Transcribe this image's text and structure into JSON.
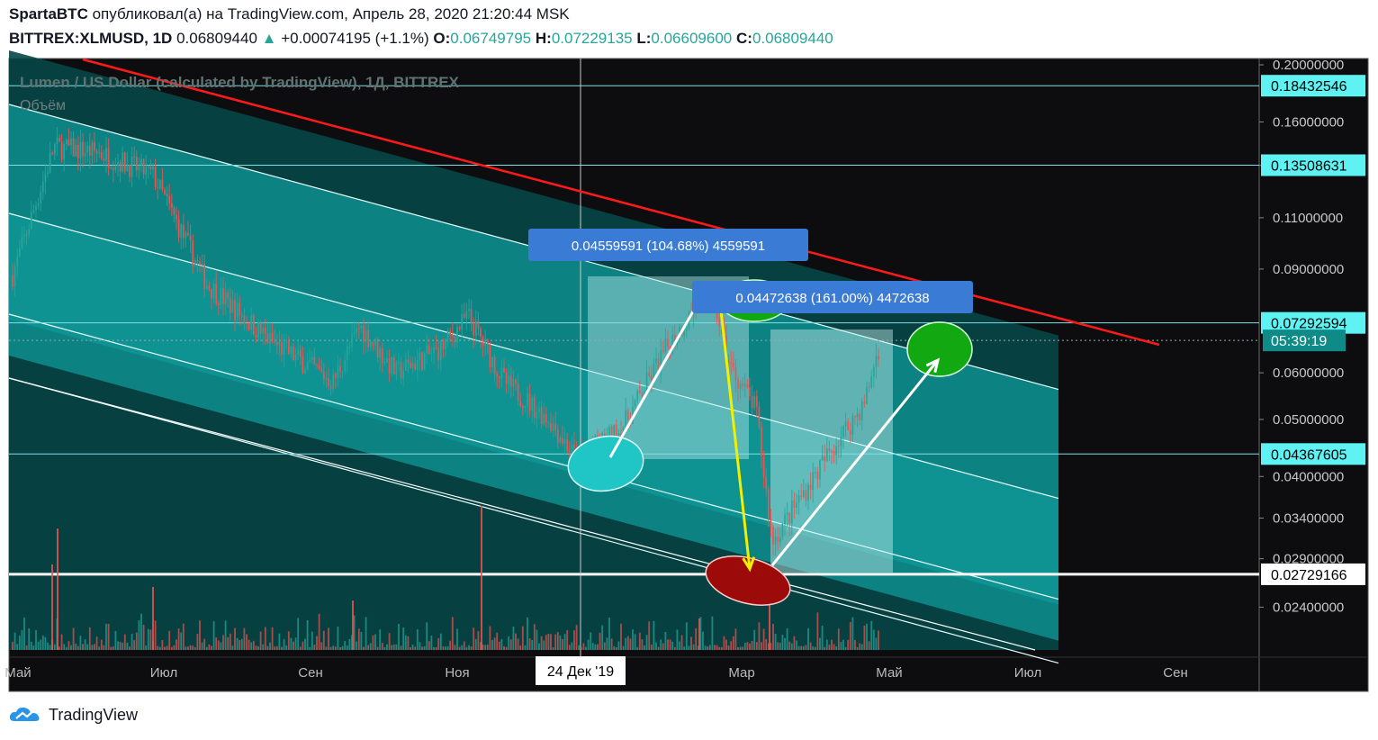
{
  "header": {
    "author": "SpartaBTC",
    "published_text": "опубликовал(а) на TradingView.com, Апрель 28, 2020 21:20:44 MSK",
    "symbol": "BITTREX:XLMUSD, 1D",
    "last": "0.06809440",
    "change_arrow": "▲",
    "change": "+0.00074195 (+1.1%)",
    "o_label": "O:",
    "o": "0.06749795",
    "h_label": "H:",
    "h": "0.07229135",
    "l_label": "L:",
    "l": "0.06609600",
    "c_label": "C:",
    "c": "0.06809440"
  },
  "legend": {
    "series_title": "Lumen / US Dollar (calculated by TradingView), 1Д, BITTREX",
    "volume_title": "Объём"
  },
  "footer": {
    "brand": "TradingView"
  },
  "chart_data": {
    "type": "candlestick",
    "scale": "log",
    "ylim": [
      0.0203,
      0.205
    ],
    "y_ticks": [
      "0.20000000",
      "0.16000000",
      "0.13500000",
      "0.11000000",
      "0.09000000",
      "0.06000000",
      "0.05000000",
      "0.04000000",
      "0.03400000",
      "0.02900000",
      "0.02400000"
    ],
    "x_ticks": [
      "Май",
      "Июл",
      "Сен",
      "Ноя",
      "Мар",
      "Май",
      "Июл",
      "Сен"
    ],
    "crosshair_date": "24 Дек '19",
    "price_labels": [
      {
        "value": 0.18432546,
        "text": "0.18432546",
        "style": "cyan"
      },
      {
        "value": 0.13508631,
        "text": "0.13508631",
        "style": "cyan"
      },
      {
        "value": 0.07292594,
        "text": "0.07292594",
        "style": "cyan"
      },
      {
        "value": 0.0680944,
        "text": "05:39:19",
        "style": "teal"
      },
      {
        "value": 0.04367605,
        "text": "0.04367605",
        "style": "cyan"
      },
      {
        "value": 0.02729166,
        "text": "0.02729166",
        "style": "white"
      }
    ],
    "measurements": [
      {
        "text": "0.04559591 (104.68%) 4559591",
        "from": 0.0436,
        "to": 0.0892
      },
      {
        "text": "0.04472638 (161.00%) 4472638",
        "from": 0.0278,
        "to": 0.0725
      }
    ],
    "colors": {
      "up": "#26a69a",
      "down": "#ef5350",
      "trendline": "#ff1a1a",
      "channel_fill": "#0f8e8e",
      "hline": "#7fdfe6",
      "label_blue": "#3a7bd5",
      "ellipse_cyan": "#20c5c5",
      "ellipse_green": "#11a811",
      "ellipse_red": "#9c0a0a",
      "arrow_yellow": "#f0f000"
    }
  }
}
